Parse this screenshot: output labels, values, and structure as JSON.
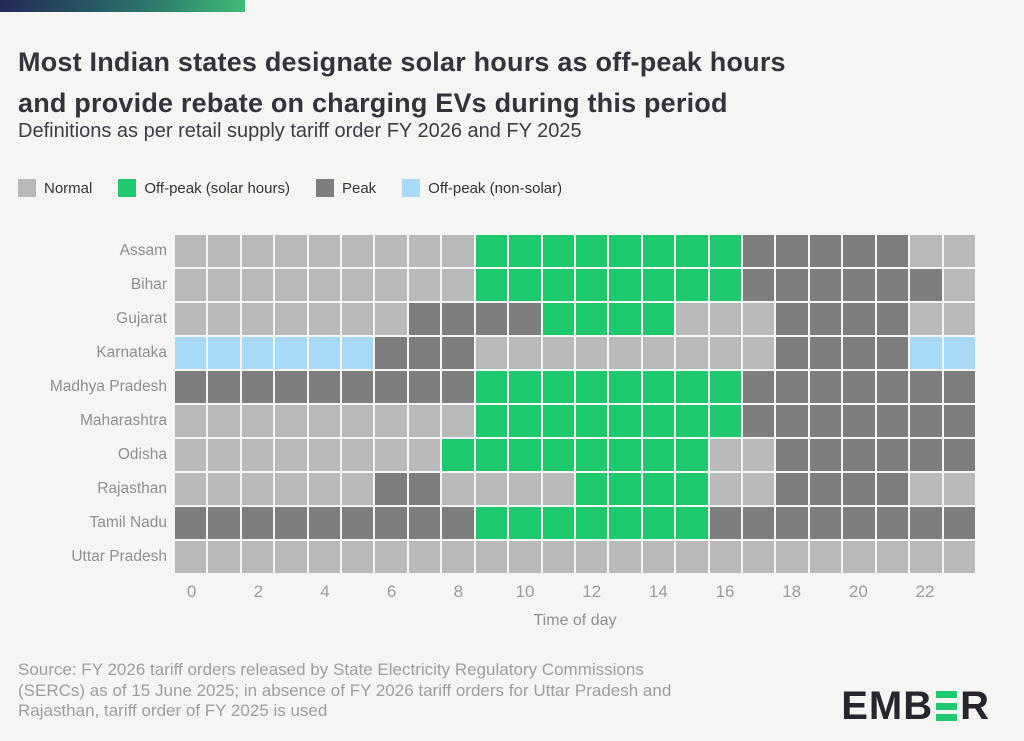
{
  "header": {
    "title": "Most Indian states designate solar hours as off-peak hours\nand provide rebate on charging EVs during this period",
    "subtitle": "Definitions as per retail supply tariff order FY 2026 and FY 2025"
  },
  "footer": {
    "source": "Source: FY 2026 tariff orders released by State Electricity Regulatory Commissions\n(SERCs) as of 15 June 2025; in absence of FY 2026 tariff orders for Uttar Pradesh and\nRajasthan, tariff order of FY 2025 is used",
    "logo_text_left": "EMB",
    "logo_text_right": "R",
    "logo_accent_color": "#21c96e",
    "logo_text_color": "#26262e"
  },
  "chart_data": {
    "type": "heatmap",
    "title": "Most Indian states designate solar hours as off-peak hours and provide rebate on charging EVs during this period",
    "subtitle": "Definitions as per retail supply tariff order FY 2026 and FY 2025",
    "xlabel": "Time of day",
    "x_ticks": [
      "0",
      "2",
      "4",
      "6",
      "8",
      "10",
      "12",
      "14",
      "16",
      "18",
      "20",
      "22"
    ],
    "hours_per_row": 24,
    "legend_position": "top",
    "legend": [
      {
        "key": "N",
        "label": "Normal",
        "color": "#b9b9b9"
      },
      {
        "key": "S",
        "label": "Off-peak (solar hours)",
        "color": "#1ec96d"
      },
      {
        "key": "P",
        "label": "Peak",
        "color": "#7d7d7d"
      },
      {
        "key": "O",
        "label": "Off-peak (non-solar)",
        "color": "#a7d9f6"
      }
    ],
    "cell_colors": {
      "N": "#b9b9b9",
      "S": "#1ec96d",
      "P": "#7d7d7d",
      "O": "#a7d9f6"
    },
    "categories": [
      "Assam",
      "Bihar",
      "Gujarat",
      "Karnataka",
      "Madhya Pradesh",
      "Maharashtra",
      "Odisha",
      "Rajasthan",
      "Tamil Nadu",
      "Uttar Pradesh"
    ],
    "rows": [
      {
        "state": "Assam",
        "cells": "NNNNNNNNNSSSSSSSSPPPPPNN"
      },
      {
        "state": "Bihar",
        "cells": "NNNNNNNNNSSSSSSSSPPPPPPN"
      },
      {
        "state": "Gujarat",
        "cells": "NNNNNNNPPPPSSSSNNNPPPPNN"
      },
      {
        "state": "Karnataka",
        "cells": "OOOOOOPPPNNNNNNNNNPPPPOO"
      },
      {
        "state": "Madhya Pradesh",
        "cells": "PPPPPPPPPSSSSSSSSPPPPPPP"
      },
      {
        "state": "Maharashtra",
        "cells": "NNNNNNNNNSSSSSSSSPPPPPPP"
      },
      {
        "state": "Odisha",
        "cells": "NNNNNNNNSSSSSSSSNNPPPPPP"
      },
      {
        "state": "Rajasthan",
        "cells": "NNNNNNPPNNNNSSSSNNPPPPNN"
      },
      {
        "state": "Tamil Nadu",
        "cells": "PPPPPPPPPSSSSSSSPPPPPPPP"
      },
      {
        "state": "Uttar Pradesh",
        "cells": "NNNNNNNNNNNNNNNNNNNNNNNN"
      }
    ]
  }
}
